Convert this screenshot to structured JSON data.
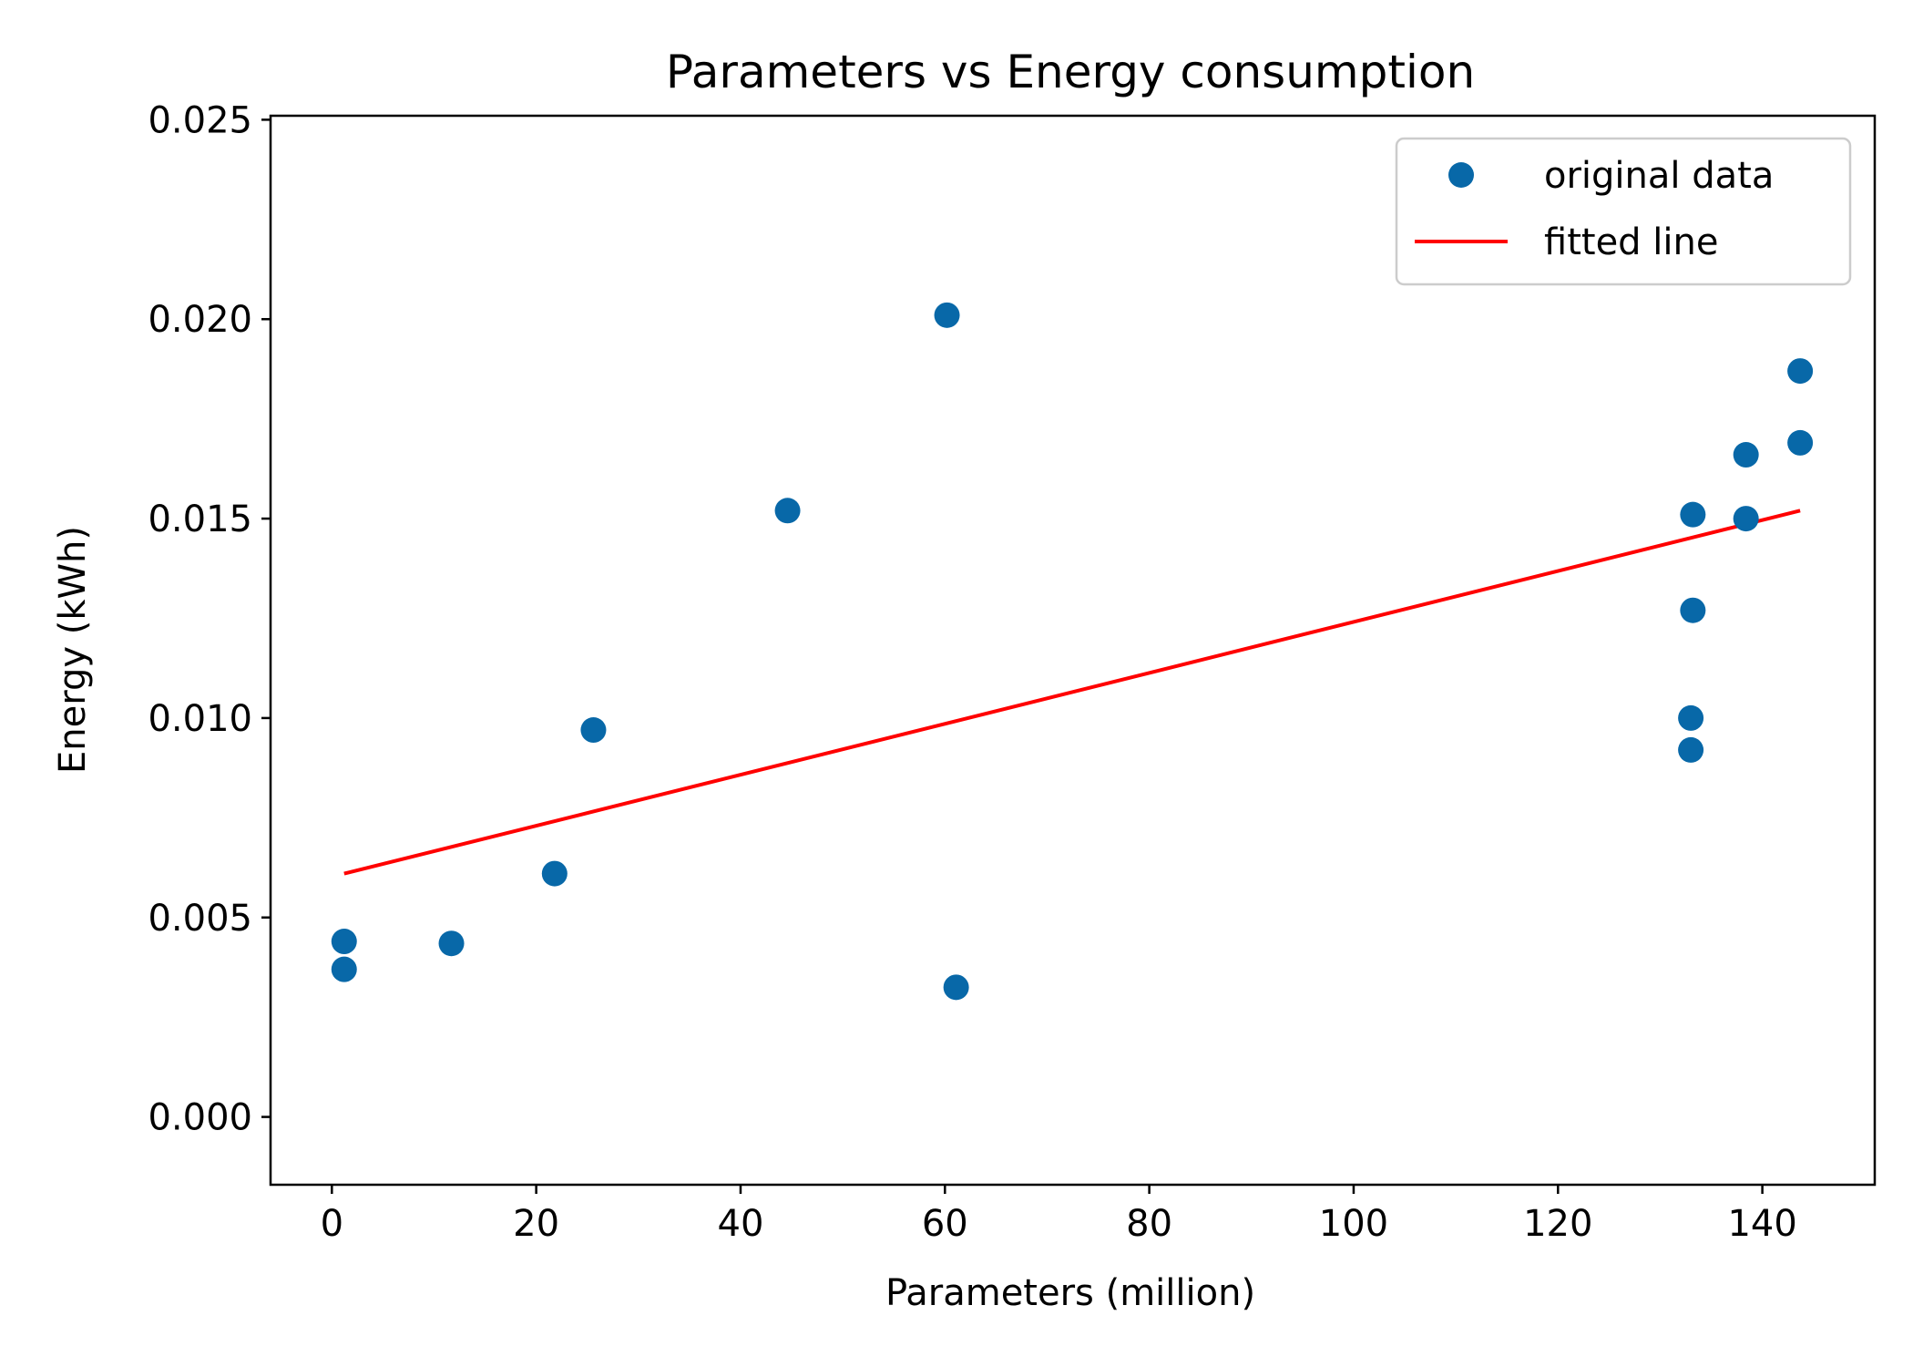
{
  "colors": {
    "points": "#0868a8",
    "fit_line": "#ff0000",
    "axes": "#000000",
    "legend_border": "#cccccc"
  },
  "chart_data": {
    "type": "scatter",
    "title": "Parameters vs Energy consumption",
    "xlabel": "Parameters (million)",
    "ylabel": "Energy (kWh)",
    "xlim": [
      -6,
      151
    ],
    "ylim": [
      -0.0017,
      0.0251
    ],
    "xticks": [
      0,
      20,
      40,
      60,
      80,
      100,
      120,
      140
    ],
    "xtick_labels": [
      "0",
      "20",
      "40",
      "60",
      "80",
      "100",
      "120",
      "140"
    ],
    "yticks": [
      0.0,
      0.005,
      0.01,
      0.015,
      0.02,
      0.025
    ],
    "ytick_labels": [
      "0.000",
      "0.005",
      "0.010",
      "0.015",
      "0.020",
      "0.025"
    ],
    "grid": false,
    "legend_position": "top-right",
    "series": [
      {
        "name": "original data",
        "kind": "scatter",
        "x": [
          1.2,
          1.2,
          11.7,
          21.8,
          25.6,
          44.6,
          60.2,
          61.1,
          133.0,
          133.0,
          133.2,
          133.2,
          138.4,
          138.4,
          143.7,
          143.7
        ],
        "y": [
          0.0044,
          0.0037,
          0.00435,
          0.0061,
          0.0097,
          0.0152,
          0.0201,
          0.00325,
          0.0092,
          0.01,
          0.0127,
          0.0151,
          0.015,
          0.0166,
          0.0169,
          0.0187
        ]
      },
      {
        "name": "fitted line",
        "kind": "line",
        "x": [
          1.2,
          143.7
        ],
        "y": [
          0.0061,
          0.0152
        ]
      }
    ]
  }
}
